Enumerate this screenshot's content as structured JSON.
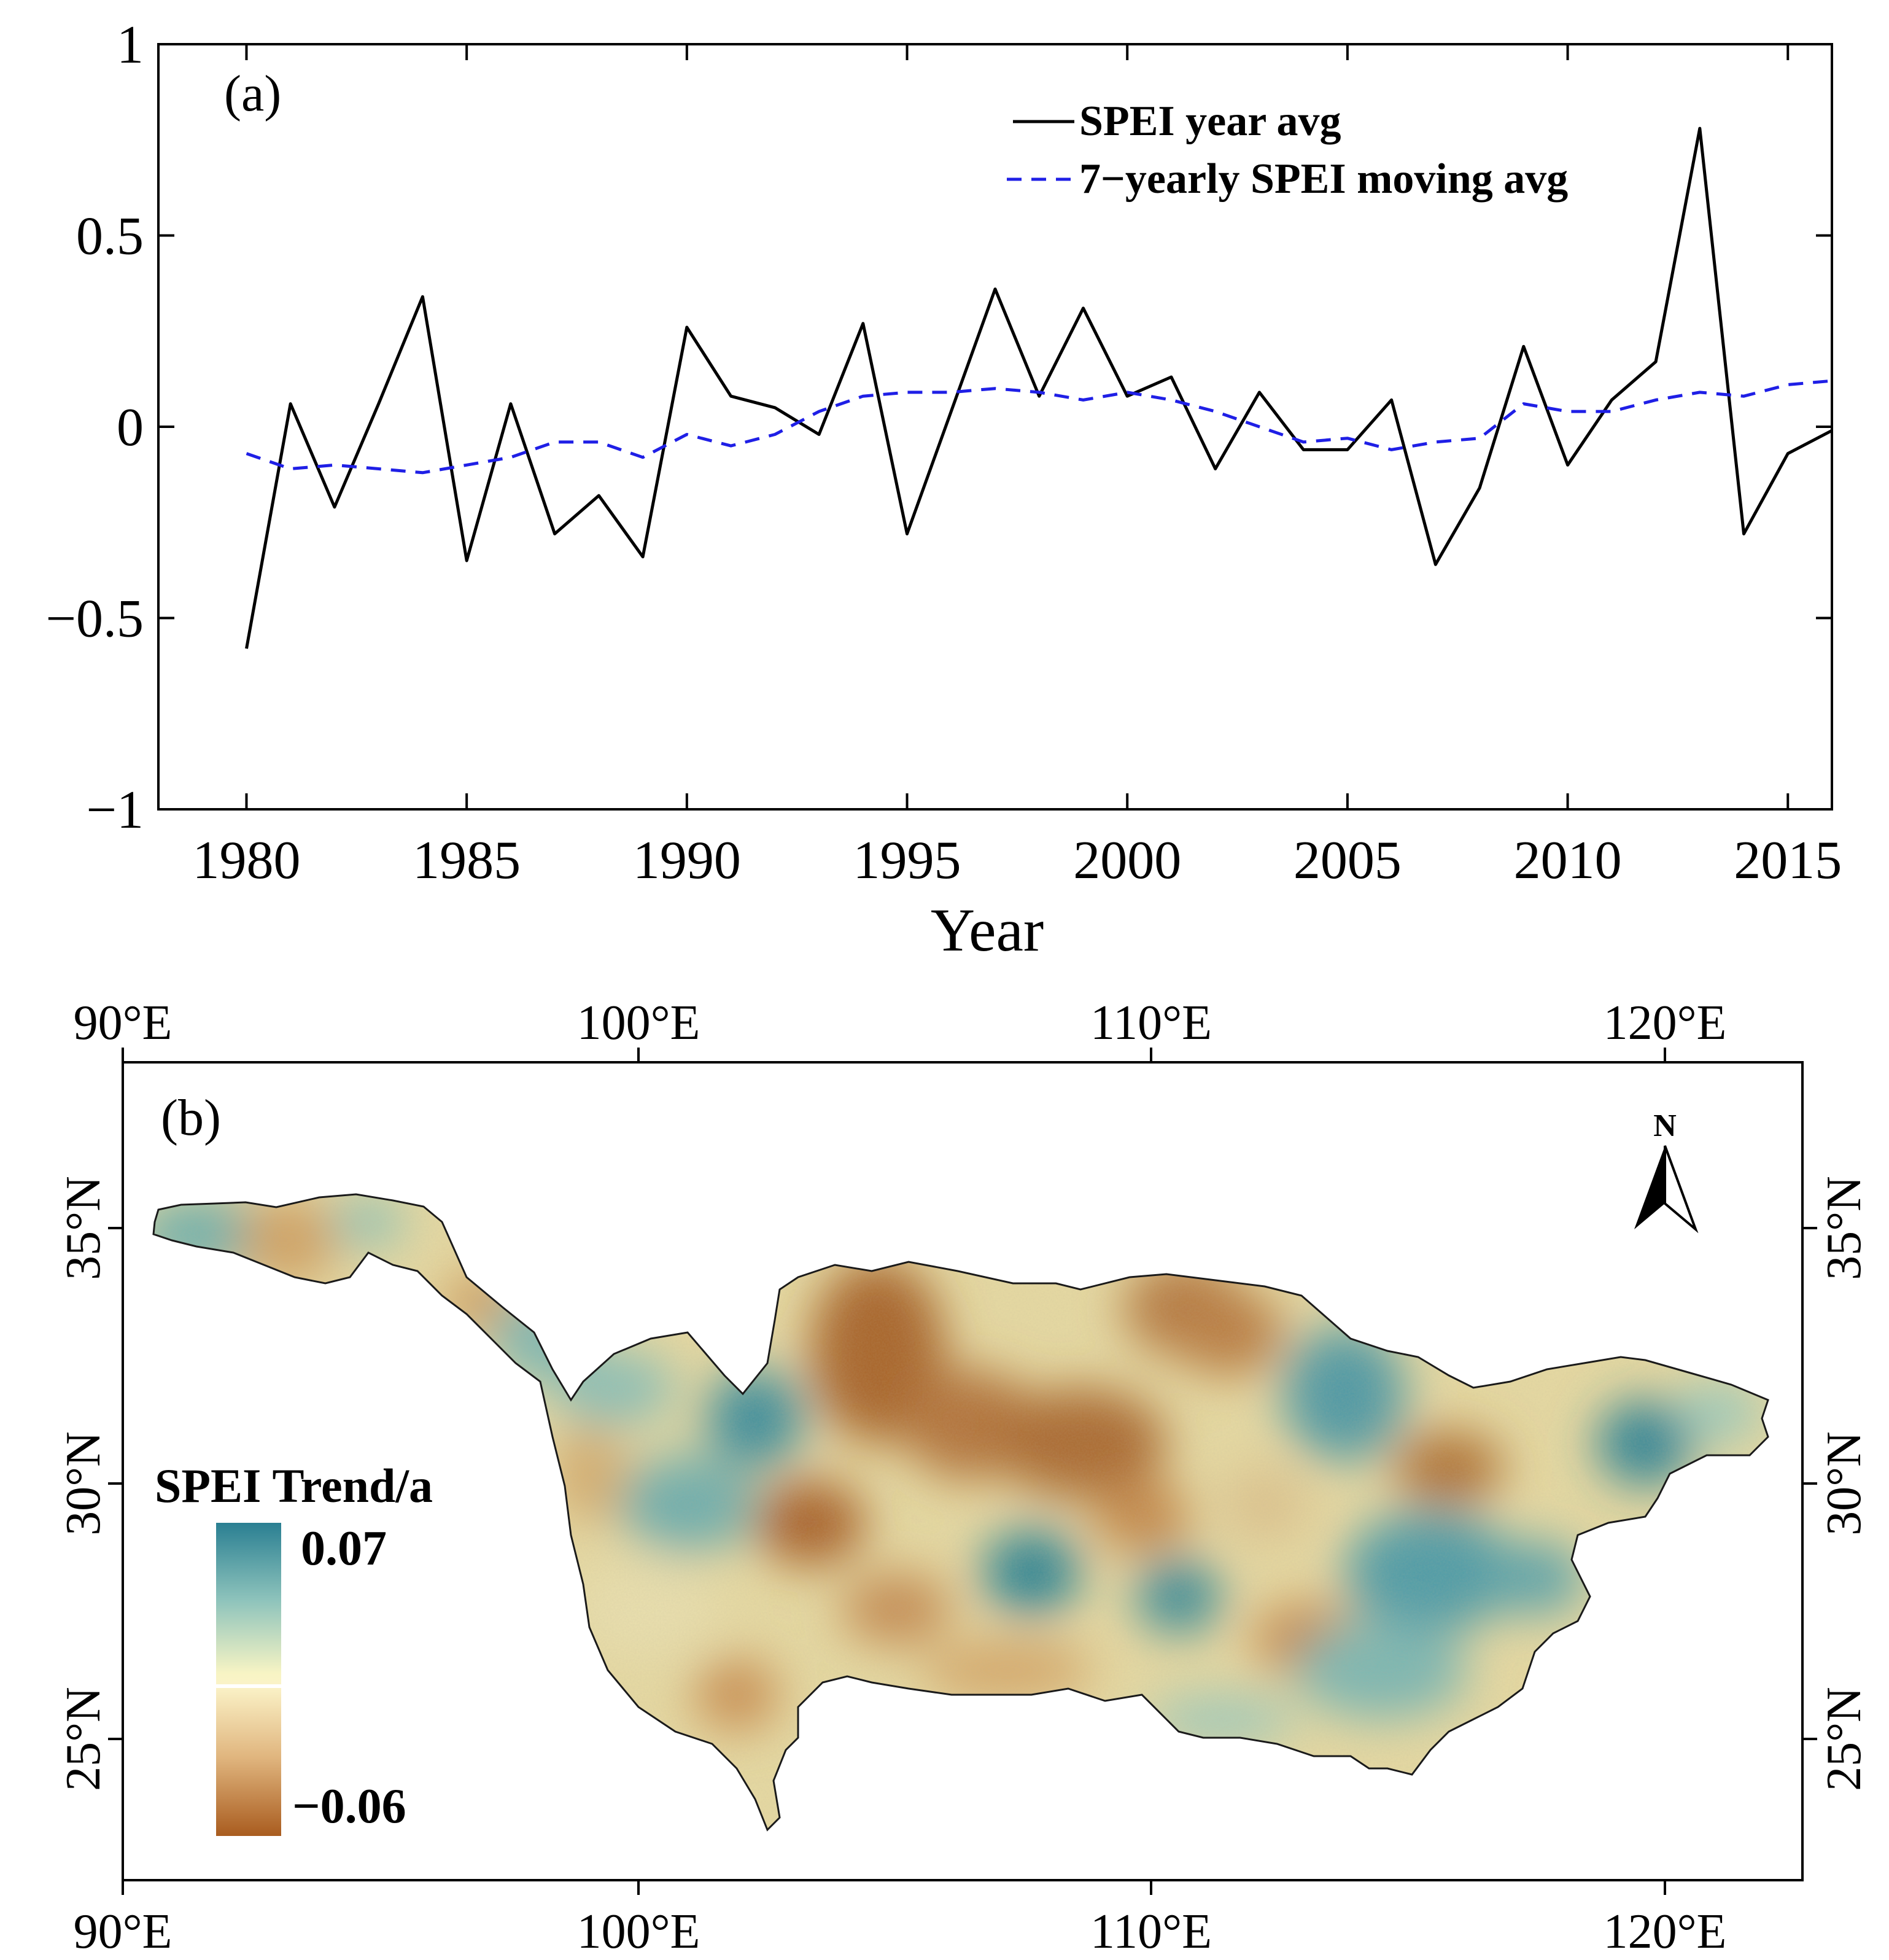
{
  "chart_data": [
    {
      "type": "line",
      "panel_label": "(a)",
      "xlabel": "Year",
      "ylabel": "",
      "xlim": [
        1978,
        2016
      ],
      "ylim": [
        -1,
        1
      ],
      "x_ticks": [
        1980,
        1985,
        1990,
        1995,
        2000,
        2005,
        2010,
        2015
      ],
      "x_tick_labels": [
        "1980",
        "1985",
        "1990",
        "1995",
        "2000",
        "2005",
        "2010",
        "2015"
      ],
      "y_ticks": [
        1,
        0.5,
        0,
        -0.5,
        -1
      ],
      "y_tick_labels": [
        "1",
        "0.5",
        "0",
        "−0.5",
        "−1"
      ],
      "legend_position": "top-right",
      "x": [
        1980,
        1981,
        1982,
        1983,
        1984,
        1985,
        1986,
        1987,
        1988,
        1989,
        1990,
        1991,
        1992,
        1993,
        1994,
        1995,
        1996,
        1997,
        1998,
        1999,
        2000,
        2001,
        2002,
        2003,
        2004,
        2005,
        2006,
        2007,
        2008,
        2009,
        2010,
        2011,
        2012,
        2013,
        2014,
        2015,
        2016
      ],
      "series": [
        {
          "name": "SPEI year avg",
          "color": "#000000",
          "style": "solid",
          "values": [
            -0.58,
            0.06,
            -0.21,
            0.06,
            0.34,
            -0.35,
            0.06,
            -0.28,
            -0.18,
            -0.34,
            0.26,
            0.08,
            0.05,
            -0.02,
            0.27,
            -0.28,
            0.04,
            0.36,
            0.08,
            0.31,
            0.08,
            0.13,
            -0.11,
            0.09,
            -0.06,
            -0.06,
            0.07,
            -0.36,
            -0.16,
            0.21,
            -0.1,
            0.07,
            0.17,
            0.78,
            -0.28,
            -0.07,
            -0.01
          ]
        },
        {
          "name": "7−yearly SPEI moving avg",
          "color": "#1f1fe6",
          "style": "dashed",
          "values": [
            -0.07,
            -0.11,
            -0.1,
            -0.11,
            -0.12,
            -0.1,
            -0.08,
            -0.04,
            -0.04,
            -0.08,
            -0.02,
            -0.05,
            -0.02,
            0.04,
            0.08,
            0.09,
            0.09,
            0.1,
            0.09,
            0.07,
            0.09,
            0.07,
            0.04,
            0.0,
            -0.04,
            -0.03,
            -0.06,
            -0.04,
            -0.03,
            0.06,
            0.04,
            0.04,
            0.07,
            0.09,
            0.08,
            0.11,
            0.12
          ]
        }
      ]
    },
    {
      "type": "heatmap",
      "panel_label": "(b)",
      "top_axis_labels": [
        "90°E",
        "100°E",
        "110°E",
        "120°E"
      ],
      "bottom_axis_labels": [
        "90°E",
        "100°E",
        "110°E",
        "120°E"
      ],
      "left_axis_labels": [
        "35°N",
        "30°N",
        "25°N"
      ],
      "right_axis_labels": [
        "35°N",
        "30°N",
        "25°N"
      ],
      "colorbar": {
        "title": "SPEI Trend/a",
        "max_label": "0.07",
        "min_label": "−0.06",
        "max": 0.07,
        "min": -0.06,
        "colors": [
          "#2a7f92",
          "#f7f4c4",
          "#a95c1f"
        ]
      },
      "north_arrow_label": "N"
    }
  ]
}
